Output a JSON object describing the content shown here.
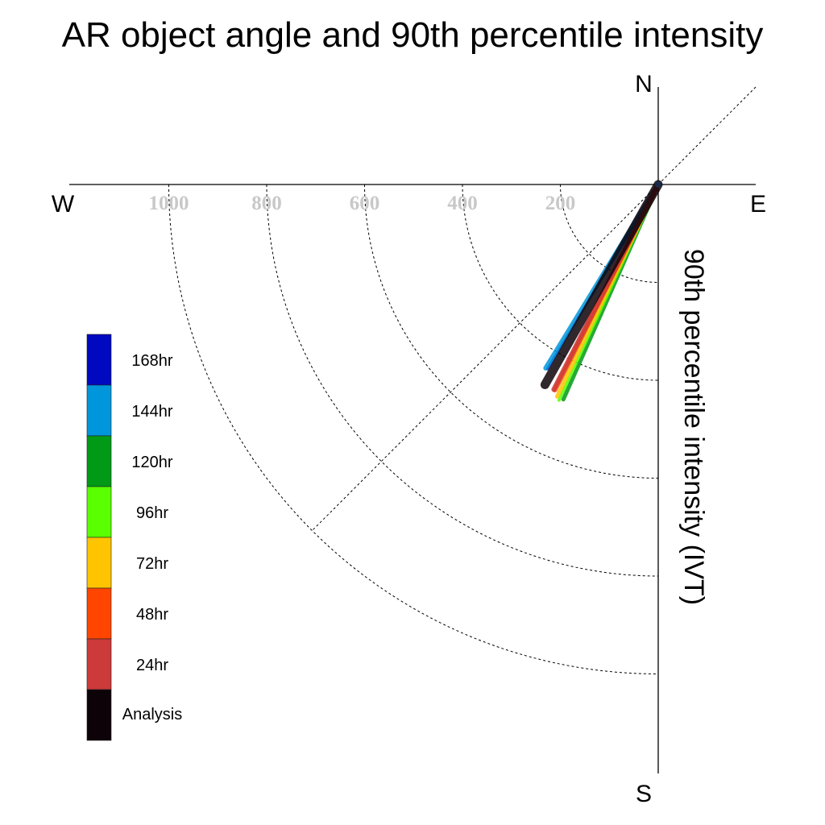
{
  "chart_data": {
    "type": "polar_vector",
    "title": "AR object angle and 90th percentile intensity",
    "ylabel": "90th percentile intensity (IVT)",
    "compass": {
      "north": "N",
      "south": "S",
      "east": "E",
      "west": "W"
    },
    "radial_ticks": [
      200,
      400,
      600,
      800,
      1000
    ],
    "radial_tick_labels": [
      "200",
      "400",
      "600",
      "800",
      "1000"
    ],
    "r_max": 1200,
    "grid": true,
    "legend_position": "left",
    "series": [
      {
        "name": "Analysis",
        "color": "#0d0208",
        "angle_deg": 209.5,
        "intensity": 470,
        "stroke": 11
      },
      {
        "name": "24hr",
        "color": "#cc3a3a",
        "angle_deg": 207.0,
        "intensity": 470,
        "stroke": 6
      },
      {
        "name": "48hr",
        "color": "#ff4500",
        "angle_deg": 206.7,
        "intensity": 470,
        "stroke": 6
      },
      {
        "name": "72hr",
        "color": "#ffc400",
        "angle_deg": 205.5,
        "intensity": 480,
        "stroke": 5
      },
      {
        "name": "96hr",
        "color": "#5aff00",
        "angle_deg": 204.7,
        "intensity": 485,
        "stroke": 4
      },
      {
        "name": "120hr",
        "color": "#009a16",
        "angle_deg": 203.8,
        "intensity": 480,
        "stroke": 5
      },
      {
        "name": "144hr",
        "color": "#0096dc",
        "angle_deg": 211.5,
        "intensity": 440,
        "stroke": 6
      },
      {
        "name": "168hr",
        "color": "#0010c0",
        "angle_deg": 211.0,
        "intensity": 440,
        "stroke": 3
      }
    ],
    "legend": [
      {
        "label": "168hr",
        "color": "#0008c0"
      },
      {
        "label": "144hr",
        "color": "#0096dc"
      },
      {
        "label": "120hr",
        "color": "#009a16"
      },
      {
        "label": "96hr",
        "color": "#5aff00"
      },
      {
        "label": "72hr",
        "color": "#ffc400"
      },
      {
        "label": "48hr",
        "color": "#ff4500"
      },
      {
        "label": "24hr",
        "color": "#cc3a3a"
      },
      {
        "label": "Analysis",
        "color": "#0d0208"
      }
    ]
  }
}
